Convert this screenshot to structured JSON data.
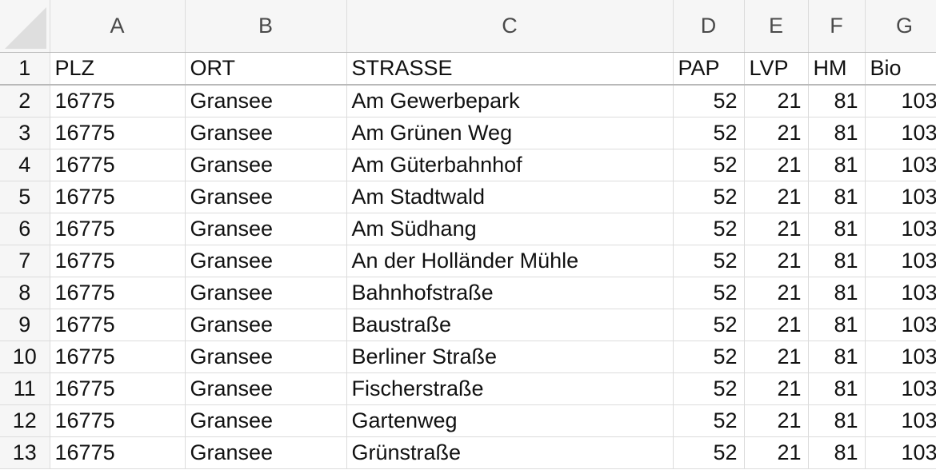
{
  "columns": [
    "A",
    "B",
    "C",
    "D",
    "E",
    "F",
    "G"
  ],
  "rows": [
    {
      "n": "1",
      "a": "PLZ",
      "b": "ORT",
      "c": "STRASSE",
      "d": "PAP",
      "e": "LVP",
      "f": "HM",
      "g": "Bio"
    },
    {
      "n": "2",
      "a": "16775",
      "b": "Gransee",
      "c": "Am Gewerbepark",
      "d": "52",
      "e": "21",
      "f": "81",
      "g": "103"
    },
    {
      "n": "3",
      "a": "16775",
      "b": "Gransee",
      "c": "Am Grünen Weg",
      "d": "52",
      "e": "21",
      "f": "81",
      "g": "103"
    },
    {
      "n": "4",
      "a": "16775",
      "b": "Gransee",
      "c": "Am Güterbahnhof",
      "d": "52",
      "e": "21",
      "f": "81",
      "g": "103"
    },
    {
      "n": "5",
      "a": "16775",
      "b": "Gransee",
      "c": "Am Stadtwald",
      "d": "52",
      "e": "21",
      "f": "81",
      "g": "103"
    },
    {
      "n": "6",
      "a": "16775",
      "b": "Gransee",
      "c": "Am Südhang",
      "d": "52",
      "e": "21",
      "f": "81",
      "g": "103"
    },
    {
      "n": "7",
      "a": "16775",
      "b": "Gransee",
      "c": "An der Holländer Mühle",
      "d": "52",
      "e": "21",
      "f": "81",
      "g": "103"
    },
    {
      "n": "8",
      "a": "16775",
      "b": "Gransee",
      "c": "Bahnhofstraße",
      "d": "52",
      "e": "21",
      "f": "81",
      "g": "103"
    },
    {
      "n": "9",
      "a": "16775",
      "b": "Gransee",
      "c": "Baustraße",
      "d": "52",
      "e": "21",
      "f": "81",
      "g": "103"
    },
    {
      "n": "10",
      "a": "16775",
      "b": "Gransee",
      "c": "Berliner Straße",
      "d": "52",
      "e": "21",
      "f": "81",
      "g": "103"
    },
    {
      "n": "11",
      "a": "16775",
      "b": "Gransee",
      "c": "Fischerstraße",
      "d": "52",
      "e": "21",
      "f": "81",
      "g": "103"
    },
    {
      "n": "12",
      "a": "16775",
      "b": "Gransee",
      "c": "Gartenweg",
      "d": "52",
      "e": "21",
      "f": "81",
      "g": "103"
    },
    {
      "n": "13",
      "a": "16775",
      "b": "Gransee",
      "c": "Grünstraße",
      "d": "52",
      "e": "21",
      "f": "81",
      "g": "103"
    }
  ]
}
